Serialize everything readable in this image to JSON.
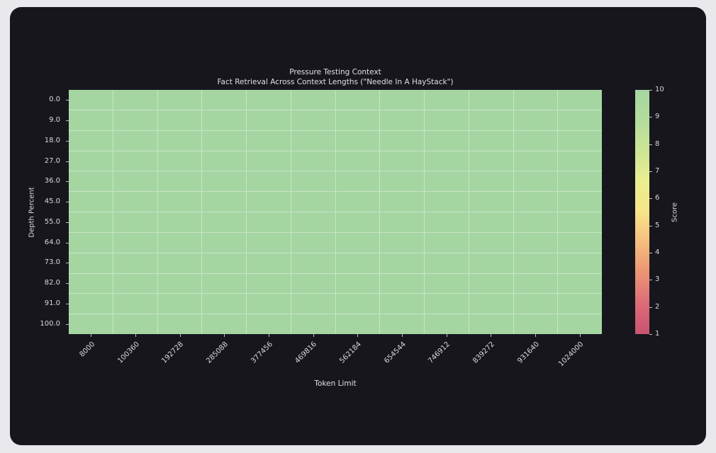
{
  "page": {
    "background": "#e9e9ed",
    "panel_background": "#17161d",
    "text_color": "#dddddd"
  },
  "chart_data": {
    "type": "heatmap",
    "title": "Pressure Testing Context",
    "subtitle": "Fact Retrieval Across Context Lengths (\"Needle In A HayStack\")",
    "xlabel": "Token Limit",
    "ylabel": "Depth Percent",
    "x_categories": [
      "8000",
      "100360",
      "192728",
      "285088",
      "377456",
      "469816",
      "562184",
      "654544",
      "746912",
      "839272",
      "931640",
      "1024000"
    ],
    "y_categories": [
      "0.0",
      "9.0",
      "18.0",
      "27.0",
      "36.0",
      "45.0",
      "55.0",
      "64.0",
      "73.0",
      "82.0",
      "91.0",
      "100.0"
    ],
    "values": [
      [
        10,
        10,
        10,
        10,
        10,
        10,
        10,
        10,
        10,
        10,
        10,
        10
      ],
      [
        10,
        10,
        10,
        10,
        10,
        10,
        10,
        10,
        10,
        10,
        10,
        10
      ],
      [
        10,
        10,
        10,
        10,
        10,
        10,
        10,
        10,
        10,
        10,
        10,
        10
      ],
      [
        10,
        10,
        10,
        10,
        10,
        10,
        10,
        10,
        10,
        10,
        10,
        10
      ],
      [
        10,
        10,
        10,
        10,
        10,
        10,
        10,
        10,
        10,
        10,
        10,
        10
      ],
      [
        10,
        10,
        10,
        10,
        10,
        10,
        10,
        10,
        10,
        10,
        10,
        10
      ],
      [
        10,
        10,
        10,
        10,
        10,
        10,
        10,
        10,
        10,
        10,
        10,
        10
      ],
      [
        10,
        10,
        10,
        10,
        10,
        10,
        10,
        10,
        10,
        10,
        10,
        10
      ],
      [
        10,
        10,
        10,
        10,
        10,
        10,
        10,
        10,
        10,
        10,
        10,
        10
      ],
      [
        10,
        10,
        10,
        10,
        10,
        10,
        10,
        10,
        10,
        10,
        10,
        10
      ],
      [
        10,
        10,
        10,
        10,
        10,
        10,
        10,
        10,
        10,
        10,
        10,
        10
      ],
      [
        10,
        10,
        10,
        10,
        10,
        10,
        10,
        10,
        10,
        10,
        10,
        10
      ]
    ],
    "grid": true,
    "grid_line_color": "#c9e4c6",
    "cell_color_for_max": "#a5d6a2",
    "legend_position": "right",
    "colorbar": {
      "label": "Score",
      "min": 1,
      "max": 10,
      "ticks": [
        "10",
        "9",
        "8",
        "7",
        "6",
        "5",
        "4",
        "3",
        "2",
        "1"
      ],
      "gradient_top_to_bottom": [
        "#a5d6a2",
        "#b4dc9c",
        "#cde596",
        "#e9ee8f",
        "#f7e488",
        "#f5bd7d",
        "#ec9374",
        "#dd6b78",
        "#c85470"
      ]
    }
  }
}
